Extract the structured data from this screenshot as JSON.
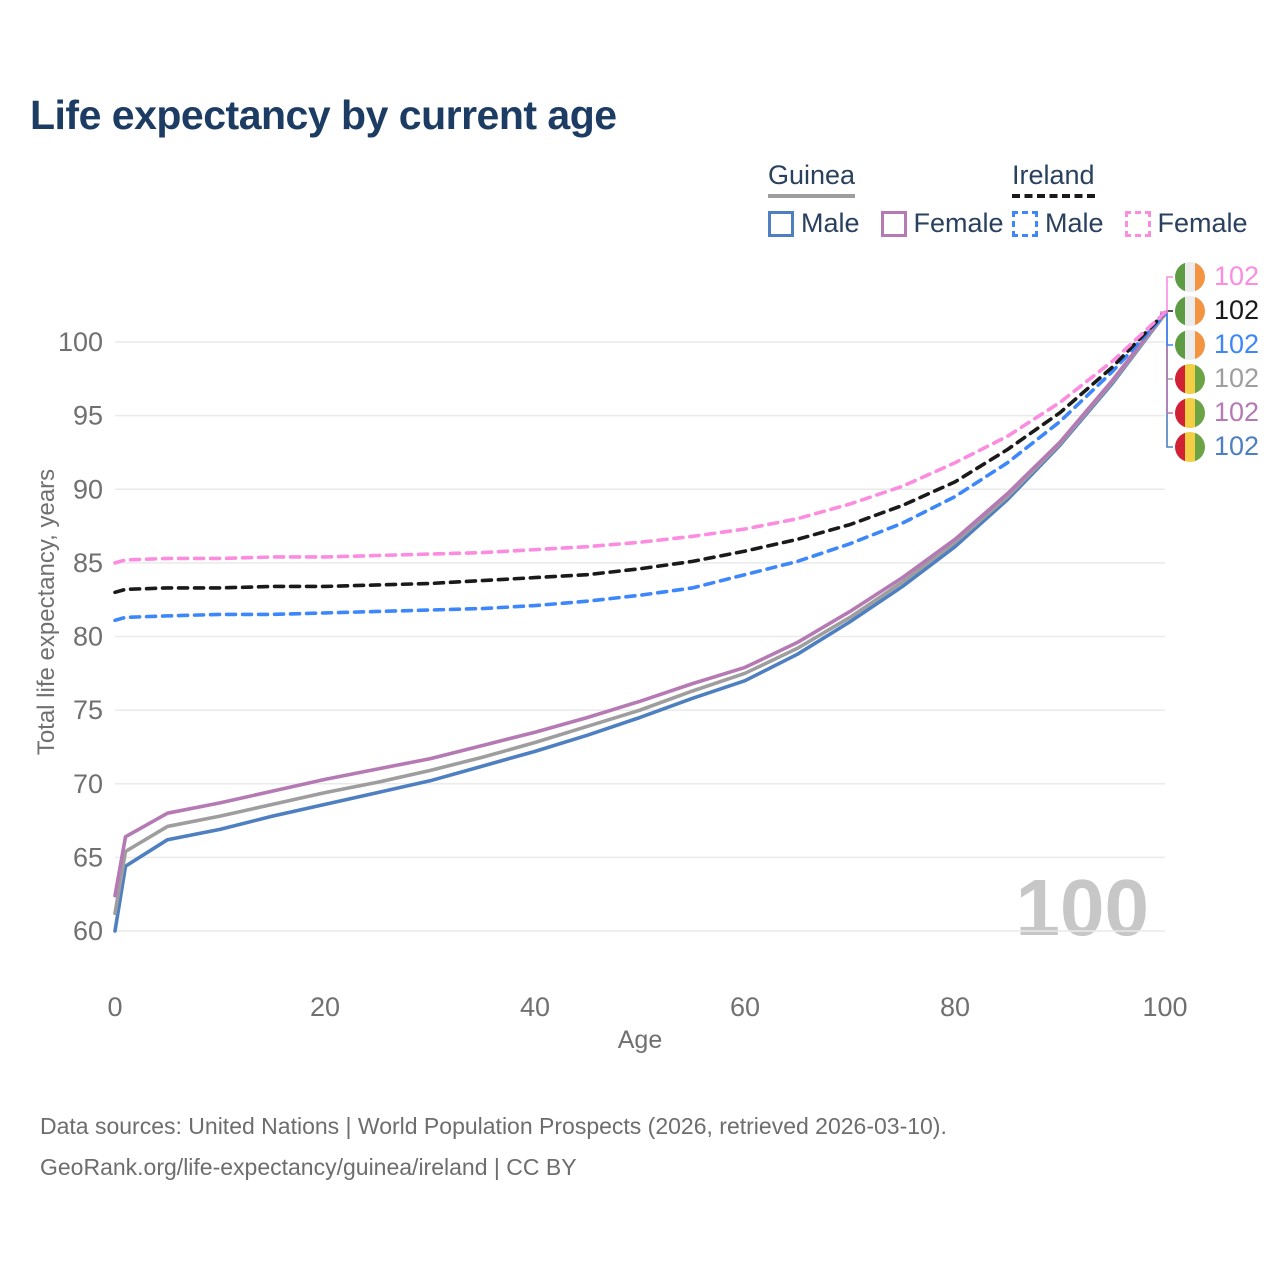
{
  "title": "Life expectancy by current age",
  "age_counter": "100",
  "legend": {
    "groups": [
      {
        "id": "guinea",
        "label": "Guinea",
        "line_style": "solid",
        "line_color": "#9e9e9e",
        "items": [
          {
            "label": "Male",
            "color": "#4e7fc1",
            "style": "solid"
          },
          {
            "label": "Female",
            "color": "#b57ab3",
            "style": "solid"
          }
        ]
      },
      {
        "id": "ireland",
        "label": "Ireland",
        "line_style": "dashed",
        "line_color": "#1a1a1a",
        "items": [
          {
            "label": "Male",
            "color": "#3d87fb",
            "style": "dashed"
          },
          {
            "label": "Female",
            "color": "#fb8ce0",
            "style": "dashed"
          }
        ]
      }
    ]
  },
  "flags": {
    "ireland": [
      "#5d9c42",
      "#ececec",
      "#f29441"
    ],
    "guinea": [
      "#d02135",
      "#f3cf45",
      "#6ca344"
    ]
  },
  "chart_data": {
    "type": "line",
    "title": "Life expectancy by current age",
    "xlabel": "Age",
    "ylabel": "Total life expectancy, years",
    "x_ticks": [
      0,
      20,
      40,
      60,
      80,
      100
    ],
    "y_ticks": [
      60,
      65,
      70,
      75,
      80,
      85,
      90,
      95,
      100
    ],
    "xlim": [
      0,
      100
    ],
    "ylim": [
      59,
      103
    ],
    "grid": "horizontal",
    "legend_position": "top-right",
    "ages": [
      0,
      1,
      5,
      10,
      15,
      20,
      25,
      30,
      35,
      40,
      45,
      50,
      55,
      60,
      65,
      70,
      75,
      80,
      85,
      90,
      95,
      100
    ],
    "series": [
      {
        "id": "guinea-male",
        "name": "Guinea Male",
        "country": "guinea",
        "sex": "male",
        "color": "#4e7fc1",
        "dashed": false,
        "end_value": "102",
        "end_label_row": 5,
        "values": [
          60.0,
          64.4,
          66.2,
          66.9,
          67.8,
          68.6,
          69.4,
          70.2,
          71.2,
          72.2,
          73.3,
          74.5,
          75.8,
          77.0,
          78.8,
          81.0,
          83.4,
          86.1,
          89.3,
          93.0,
          97.2,
          101.9
        ]
      },
      {
        "id": "guinea-both",
        "name": "Guinea",
        "country": "guinea",
        "sex": "both",
        "color": "#9e9e9e",
        "dashed": false,
        "end_value": "102",
        "end_label_row": 3,
        "values": [
          61.2,
          65.4,
          67.1,
          67.8,
          68.6,
          69.4,
          70.1,
          70.9,
          71.8,
          72.8,
          73.9,
          75.0,
          76.3,
          77.5,
          79.2,
          81.3,
          83.7,
          86.4,
          89.5,
          93.1,
          97.3,
          101.9
        ]
      },
      {
        "id": "guinea-female",
        "name": "Guinea Female",
        "country": "guinea",
        "sex": "female",
        "color": "#b57ab3",
        "dashed": false,
        "end_value": "102",
        "end_label_row": 4,
        "values": [
          62.4,
          66.4,
          68.0,
          68.7,
          69.5,
          70.3,
          71.0,
          71.7,
          72.6,
          73.5,
          74.5,
          75.6,
          76.8,
          77.9,
          79.6,
          81.7,
          84.0,
          86.6,
          89.7,
          93.2,
          97.4,
          102.0
        ]
      },
      {
        "id": "ireland-male",
        "name": "Ireland Male",
        "country": "ireland",
        "sex": "male",
        "color": "#3d87fb",
        "dashed": true,
        "end_value": "102",
        "end_label_row": 2,
        "values": [
          81.1,
          81.3,
          81.4,
          81.5,
          81.5,
          81.6,
          81.7,
          81.8,
          81.9,
          82.1,
          82.4,
          82.8,
          83.3,
          84.2,
          85.1,
          86.3,
          87.7,
          89.5,
          91.8,
          94.6,
          98.0,
          101.9
        ]
      },
      {
        "id": "ireland-both",
        "name": "Ireland",
        "country": "ireland",
        "sex": "both",
        "color": "#1a1a1a",
        "dashed": true,
        "end_value": "102",
        "end_label_row": 1,
        "values": [
          83.0,
          83.2,
          83.3,
          83.3,
          83.4,
          83.4,
          83.5,
          83.6,
          83.8,
          84.0,
          84.2,
          84.6,
          85.1,
          85.8,
          86.6,
          87.6,
          88.9,
          90.5,
          92.7,
          95.2,
          98.3,
          102.0
        ]
      },
      {
        "id": "ireland-female",
        "name": "Ireland Female",
        "country": "ireland",
        "sex": "female",
        "color": "#fb8ce0",
        "dashed": true,
        "end_value": "102",
        "end_label_row": 0,
        "values": [
          85.0,
          85.2,
          85.3,
          85.3,
          85.4,
          85.4,
          85.5,
          85.6,
          85.7,
          85.9,
          86.1,
          86.4,
          86.8,
          87.3,
          88.0,
          89.0,
          90.2,
          91.8,
          93.6,
          95.9,
          98.7,
          102.0
        ]
      }
    ]
  },
  "footer": {
    "line1": "Data sources: United Nations | World Population Prospects (2026, retrieved 2026-03-10).",
    "line2": "GeoRank.org/life-expectancy/guinea/ireland | CC BY"
  }
}
